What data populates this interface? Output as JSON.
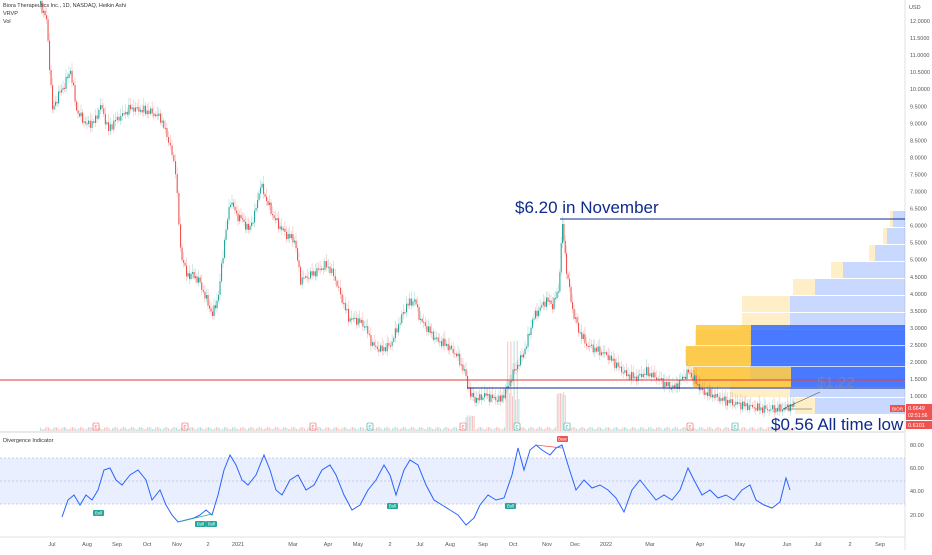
{
  "header": {
    "symbol_line": "Biora Therapeutics Inc., 1D, NASDAQ, Heikin Ashi",
    "indicator_1": "VRVP",
    "indicator_2": "Vol"
  },
  "currency": "USD",
  "price_axis": {
    "labels": [
      "12.0000",
      "11.5000",
      "11.0000",
      "10.5000",
      "10.0000",
      "9.5000",
      "9.0000",
      "8.5000",
      "8.0000",
      "7.5000",
      "7.0000",
      "6.5000",
      "6.0000",
      "5.5000",
      "5.0000",
      "4.5000",
      "4.0000",
      "3.5000",
      "3.0000",
      "2.5000",
      "2.0000",
      "1.5000",
      "1.0000"
    ]
  },
  "price_badges": {
    "ticker": "BIOR",
    "last": "0.6649",
    "countdown": "02:51:56",
    "low": "0.6101"
  },
  "annotations": {
    "november_high": "$6.20 in November",
    "level_mid": "$1.22",
    "all_time_low": "$0.56 All time low"
  },
  "event_markers": [
    "E",
    "E",
    "E",
    "E",
    "E",
    "E",
    "E",
    "E",
    "E"
  ],
  "oscillator": {
    "title": "Divergence Indicator",
    "axis_labels": [
      "80.00",
      "60.00",
      "40.00",
      "20.00"
    ],
    "signal_bull": "Bull",
    "signal_bear": "Bear",
    "signals": [
      "Bull",
      "Bull",
      "Bull",
      "Bull",
      "Bull",
      "Bear"
    ]
  },
  "time_axis": {
    "labels": [
      "Jul",
      "Aug",
      "Sep",
      "Oct",
      "Nov",
      "2",
      "2021",
      "Mar",
      "Apr",
      "May",
      "2",
      "Jul",
      "Aug",
      "Sep",
      "Oct",
      "Nov",
      "Dec",
      "2022",
      "Mar",
      "Apr",
      "May",
      "Jun",
      "Jul",
      "2",
      "Sep",
      "Oct"
    ]
  },
  "colors": {
    "up": "#26a69a",
    "down": "#ef5350",
    "annotation": "#0d2a8c",
    "red_level": "#e53935",
    "oscillator_line": "#2962ff",
    "vrvp_blue": "#2962ff",
    "vrvp_yellow": "#fbbf24"
  }
}
